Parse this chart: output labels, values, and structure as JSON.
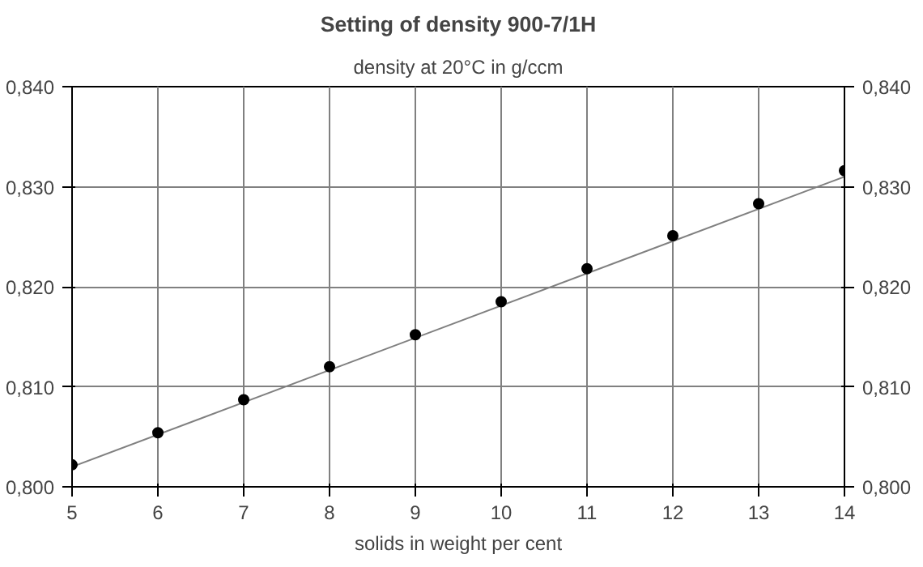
{
  "chart_data": {
    "type": "scatter",
    "title": "Setting of density 900-7/1H",
    "subtitle": "density at 20°C in g/ccm",
    "xlabel": "solids in weight per cent",
    "x": [
      5,
      6,
      7,
      8,
      9,
      10,
      11,
      12,
      13,
      14
    ],
    "series": [
      {
        "color": "#000000",
        "marker": "circle",
        "values": [
          0.8022,
          0.8054,
          0.8087,
          0.812,
          0.8152,
          0.8185,
          0.8218,
          0.8251,
          0.8283,
          0.8316
        ]
      },
      {
        "type": "line",
        "color": "#808080",
        "x": [
          5,
          14
        ],
        "values": [
          0.802,
          0.831
        ]
      }
    ],
    "grid": true,
    "xlim": [
      5,
      14
    ],
    "xticks": [
      5,
      6,
      7,
      8,
      9,
      10,
      11,
      12,
      13,
      14
    ],
    "ylim": [
      0.8,
      0.84
    ],
    "yticks": [
      {
        "value": 0.8,
        "label": "0,800"
      },
      {
        "value": 0.81,
        "label": "0,810"
      },
      {
        "value": 0.82,
        "label": "0,820"
      },
      {
        "value": 0.83,
        "label": "0,830"
      },
      {
        "value": 0.84,
        "label": "0,840"
      }
    ],
    "y2lim": [
      0.8,
      0.84
    ],
    "y2ticks": [
      {
        "value": 0.8,
        "label": "0,800"
      },
      {
        "value": 0.81,
        "label": "0,810"
      },
      {
        "value": 0.82,
        "label": "0,820"
      },
      {
        "value": 0.83,
        "label": "0,830"
      },
      {
        "value": 0.84,
        "label": "0,840"
      }
    ]
  }
}
